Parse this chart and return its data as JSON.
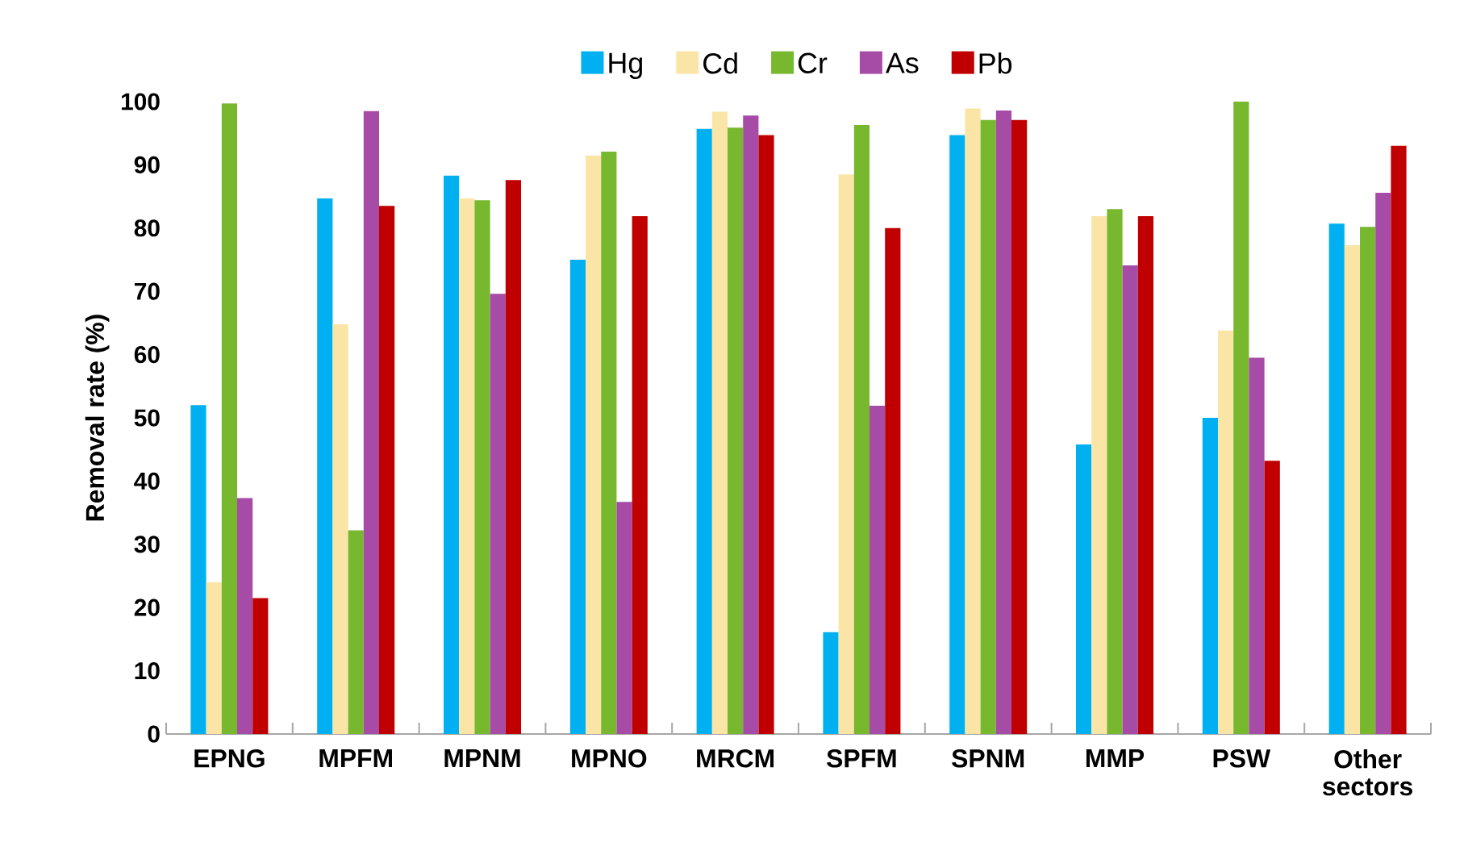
{
  "chart_data": {
    "type": "bar",
    "ylabel": "Removal rate (%)",
    "legend": "top",
    "categories": [
      "EPNG",
      "MPFM",
      "MPNM",
      "MPNO",
      "MRCM",
      "SPFM",
      "SPNM",
      "MMP",
      "PSW",
      "Other sectors"
    ],
    "series": [
      {
        "name": "Hg",
        "color": "#00b0f0",
        "values": [
          52,
          84.7,
          88.3,
          75,
          95.7,
          16.1,
          94.7,
          45.8,
          50,
          80.7
        ]
      },
      {
        "name": "Cd",
        "color": "#fbe5a6",
        "values": [
          24,
          64.8,
          84.7,
          91.5,
          98.4,
          88.5,
          98.9,
          81.9,
          63.8,
          77.3
        ]
      },
      {
        "name": "Cr",
        "color": "#77b82f",
        "values": [
          99.7,
          32.2,
          84.4,
          92.1,
          95.9,
          96.3,
          97.1,
          83,
          100,
          80.2
        ]
      },
      {
        "name": "As",
        "color": "#a64ca6",
        "values": [
          37.3,
          98.5,
          69.6,
          36.7,
          97.8,
          51.9,
          98.6,
          74.1,
          59.5,
          85.6
        ]
      },
      {
        "name": "Pb",
        "color": "#c00000",
        "values": [
          21.5,
          83.5,
          87.6,
          81.9,
          94.7,
          80,
          97.1,
          81.9,
          43.2,
          93
        ]
      }
    ],
    "ylim": [
      0,
      100
    ],
    "yticks": [
      0,
      10,
      20,
      30,
      40,
      50,
      60,
      70,
      80,
      90,
      100
    ]
  }
}
